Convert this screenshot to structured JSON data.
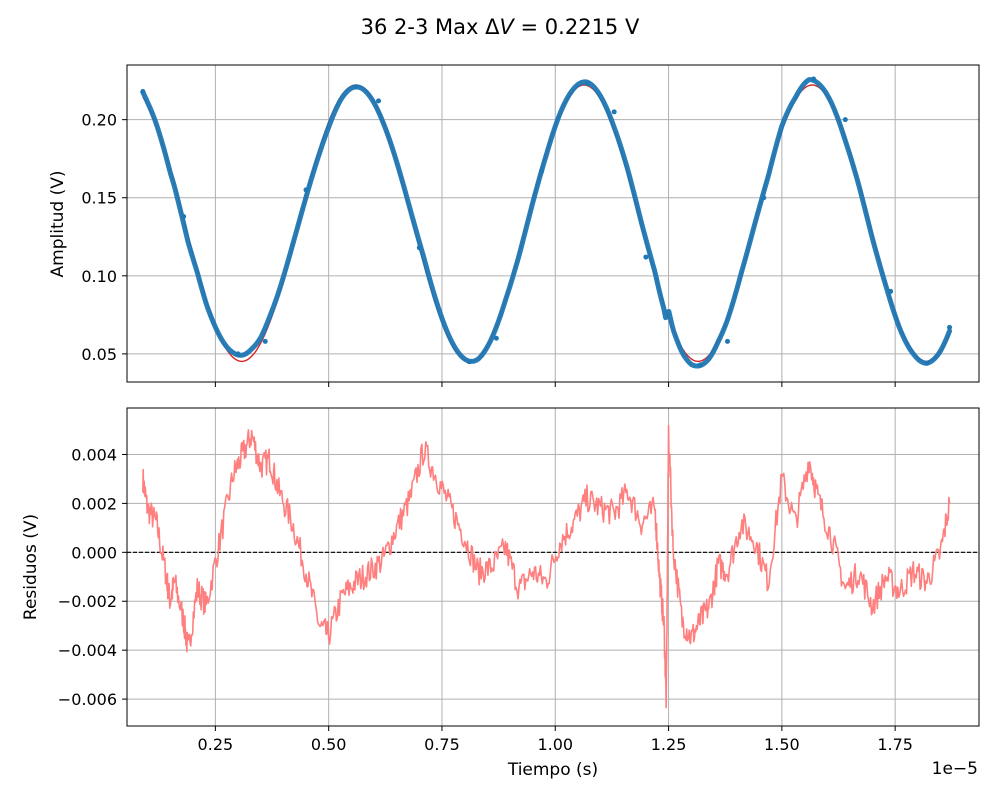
{
  "figure": {
    "title": "36 2-3 Max ΔV = 0.2215 V",
    "title_prefix": "36 2-3 Max Δ",
    "title_var": "V",
    "title_suffix": " = 0.2215 V",
    "offset_label": "1e−5"
  },
  "colors": {
    "data": "#1f77b4",
    "fit": "#d62728",
    "residual": "#ff7f7f",
    "grid": "#b0b0b0",
    "zero_line": "#000000"
  },
  "chart_data": [
    {
      "type": "line",
      "panel": "top",
      "ylabel": "Amplitud (V)",
      "xlim": [
        0.055,
        1.935
      ],
      "ylim": [
        0.032,
        0.235
      ],
      "xticks": [
        0.25,
        0.5,
        0.75,
        1.0,
        1.25,
        1.5,
        1.75
      ],
      "yticks": [
        0.05,
        0.1,
        0.15,
        0.2
      ],
      "ytick_labels": [
        "0.05",
        "0.10",
        "0.15",
        "0.20"
      ],
      "grid": true,
      "series": [
        {
          "role": "measured",
          "style": "thick blue markers",
          "x": [
            0.09,
            0.18,
            0.3,
            0.36,
            0.45,
            0.56,
            0.61,
            0.7,
            0.81,
            0.87,
            0.97,
            1.07,
            1.13,
            1.2,
            1.32,
            1.38,
            1.46,
            1.57,
            1.64,
            1.74,
            1.82,
            1.87
          ],
          "y": [
            0.218,
            0.138,
            0.05,
            0.058,
            0.155,
            0.221,
            0.212,
            0.118,
            0.045,
            0.06,
            0.167,
            0.223,
            0.205,
            0.112,
            0.043,
            0.058,
            0.15,
            0.226,
            0.2,
            0.09,
            0.044,
            0.067
          ]
        },
        {
          "role": "fit",
          "style": "thin red line",
          "amplitude": 0.0885,
          "offset": 0.1337,
          "period": 0.5035,
          "peak_x": 0.0565,
          "x_range": [
            0.09,
            1.87
          ]
        }
      ]
    },
    {
      "type": "line",
      "panel": "bottom",
      "xlabel": "Tiempo (s)",
      "ylabel": "Residuos (V)",
      "xlim": [
        0.055,
        1.935
      ],
      "ylim": [
        -0.0071,
        0.0059
      ],
      "xticks": [
        0.25,
        0.5,
        0.75,
        1.0,
        1.25,
        1.5,
        1.75
      ],
      "xtick_labels": [
        "0.25",
        "0.50",
        "0.75",
        "1.00",
        "1.25",
        "1.50",
        "1.75"
      ],
      "yticks": [
        -0.006,
        -0.004,
        -0.002,
        0.0,
        0.002,
        0.004
      ],
      "ytick_labels": [
        "−0.006",
        "−0.004",
        "−0.002",
        "0.000",
        "0.002",
        "0.004"
      ],
      "grid": true,
      "reference_line": 0.0,
      "series": [
        {
          "role": "residuals",
          "x": [
            0.09,
            0.1,
            0.12,
            0.14,
            0.15,
            0.16,
            0.18,
            0.19,
            0.21,
            0.23,
            0.26,
            0.29,
            0.31,
            0.33,
            0.35,
            0.37,
            0.39,
            0.42,
            0.45,
            0.48,
            0.5,
            0.53,
            0.56,
            0.59,
            0.62,
            0.65,
            0.68,
            0.71,
            0.74,
            0.77,
            0.8,
            0.83,
            0.86,
            0.89,
            0.92,
            0.95,
            0.98,
            1.01,
            1.04,
            1.07,
            1.1,
            1.13,
            1.16,
            1.19,
            1.22,
            1.23,
            1.24,
            1.245,
            1.25,
            1.26,
            1.28,
            1.3,
            1.32,
            1.34,
            1.36,
            1.38,
            1.41,
            1.44,
            1.47,
            1.5,
            1.53,
            1.56,
            1.58,
            1.61,
            1.64,
            1.67,
            1.7,
            1.73,
            1.76,
            1.79,
            1.82,
            1.85,
            1.87
          ],
          "y": [
            0.003,
            0.0018,
            0.0012,
            -0.0008,
            -0.002,
            -0.0012,
            -0.0028,
            -0.004,
            -0.0015,
            -0.0022,
            0.0005,
            0.0032,
            0.004,
            0.0048,
            0.0035,
            0.0038,
            0.0025,
            0.0012,
            -0.0008,
            -0.003,
            -0.0034,
            -0.0018,
            -0.0012,
            -0.0008,
            -0.0003,
            0.001,
            0.0022,
            0.0042,
            0.003,
            0.0018,
            0.0006,
            -0.0008,
            -0.0006,
            0.0002,
            -0.0015,
            -0.0008,
            -0.0012,
            0.0004,
            0.0012,
            0.0022,
            0.0018,
            0.0016,
            0.0025,
            0.0012,
            0.0018,
            -0.001,
            -0.003,
            -0.0062,
            0.005,
            0.0002,
            -0.0028,
            -0.0035,
            -0.0028,
            -0.0022,
            -0.0005,
            -0.0008,
            0.0012,
            0.0005,
            -0.0012,
            0.003,
            0.0012,
            0.0038,
            0.0022,
            0.0006,
            -0.0015,
            -0.0008,
            -0.0022,
            -0.001,
            -0.0016,
            -0.0008,
            -0.0012,
            0.0,
            0.002
          ]
        }
      ]
    }
  ]
}
